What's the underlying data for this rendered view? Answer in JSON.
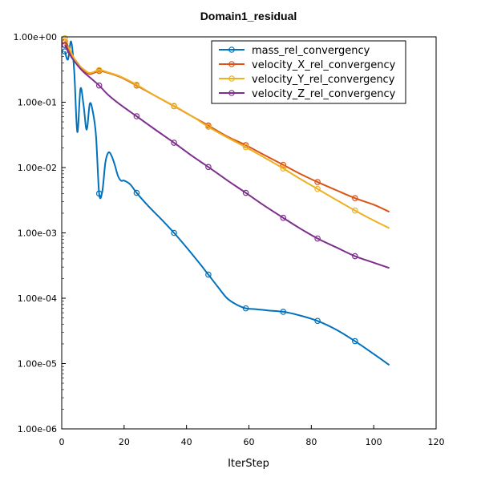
{
  "chart_data": {
    "type": "line",
    "title": "Domain1_residual",
    "xlabel": "IterStep",
    "ylabel": "",
    "xscale": "linear",
    "yscale": "log",
    "xlim": [
      0,
      120
    ],
    "ylim": [
      1e-06,
      1
    ],
    "xticks": [
      0,
      20,
      40,
      60,
      80,
      100,
      120
    ],
    "yticks": [
      1e-06,
      1e-05,
      0.0001,
      0.001,
      0.01,
      0.1,
      1
    ],
    "ytick_labels": [
      "1.00e-06",
      "1.00e-05",
      "1.00e-04",
      "1.00e-03",
      "1.00e-02",
      "1.00e-01",
      "1.00e+00"
    ],
    "legend_position": "top-right",
    "series": [
      {
        "name": "mass_rel_convergency",
        "color": "#0072BD",
        "x": [
          1,
          2,
          3,
          4,
          5,
          6,
          7,
          8,
          9,
          10,
          11,
          12,
          13,
          14,
          15,
          16,
          17,
          18,
          19,
          20,
          22,
          24,
          28,
          32,
          36,
          40,
          44,
          47,
          50,
          53,
          56,
          59,
          62,
          66,
          71,
          76,
          82,
          88,
          94,
          100,
          105
        ],
        "y": [
          0.6,
          0.45,
          0.85,
          0.3,
          0.035,
          0.16,
          0.09,
          0.038,
          0.095,
          0.07,
          0.03,
          0.004,
          0.0043,
          0.012,
          0.017,
          0.015,
          0.011,
          0.0075,
          0.0063,
          0.0063,
          0.0055,
          0.0041,
          0.0025,
          0.0016,
          0.001,
          0.0006,
          0.00035,
          0.00023,
          0.00015,
          0.0001,
          8e-05,
          7e-05,
          6.8e-05,
          6.5e-05,
          6.2e-05,
          5.5e-05,
          4.5e-05,
          3.3e-05,
          2.2e-05,
          1.4e-05,
          9.5e-06
        ],
        "markers_x": [
          1,
          12,
          24,
          36,
          47,
          59,
          71,
          82,
          94
        ]
      },
      {
        "name": "velocity_X_rel_convergency",
        "color": "#D95319",
        "x": [
          1,
          3,
          5,
          7,
          9,
          12,
          15,
          19,
          24,
          30,
          36,
          42,
          47,
          53,
          59,
          65,
          71,
          76,
          82,
          88,
          94,
          100,
          105
        ],
        "y": [
          0.85,
          0.55,
          0.4,
          0.31,
          0.27,
          0.3,
          0.28,
          0.24,
          0.18,
          0.125,
          0.087,
          0.06,
          0.044,
          0.03,
          0.022,
          0.0155,
          0.011,
          0.0082,
          0.006,
          0.0045,
          0.0034,
          0.0027,
          0.0021
        ],
        "markers_x": [
          1,
          12,
          24,
          36,
          47,
          59,
          71,
          82,
          94
        ]
      },
      {
        "name": "velocity_Y_rel_convergency",
        "color": "#EDB120",
        "x": [
          1,
          3,
          5,
          7,
          9,
          12,
          15,
          19,
          24,
          30,
          36,
          42,
          47,
          53,
          59,
          65,
          71,
          76,
          82,
          88,
          94,
          100,
          105
        ],
        "y": [
          0.95,
          0.58,
          0.39,
          0.32,
          0.28,
          0.31,
          0.285,
          0.245,
          0.185,
          0.125,
          0.088,
          0.06,
          0.042,
          0.029,
          0.0205,
          0.0142,
          0.0097,
          0.0069,
          0.0047,
          0.0032,
          0.0022,
          0.00155,
          0.00118
        ],
        "markers_x": [
          1,
          12,
          24,
          36,
          47,
          59,
          71,
          82,
          94
        ]
      },
      {
        "name": "velocity_Z_rel_convergency",
        "color": "#7E2F8E",
        "x": [
          1,
          3,
          5,
          7,
          9,
          12,
          15,
          19,
          24,
          30,
          36,
          42,
          47,
          53,
          59,
          65,
          71,
          76,
          82,
          88,
          94,
          100,
          105
        ],
        "y": [
          0.75,
          0.5,
          0.37,
          0.29,
          0.24,
          0.18,
          0.128,
          0.09,
          0.061,
          0.038,
          0.024,
          0.0148,
          0.0102,
          0.0064,
          0.0041,
          0.0026,
          0.0017,
          0.0012,
          0.00082,
          0.0006,
          0.00044,
          0.00035,
          0.00029
        ],
        "markers_x": [
          1,
          12,
          24,
          36,
          47,
          59,
          71,
          82,
          94
        ]
      }
    ]
  }
}
